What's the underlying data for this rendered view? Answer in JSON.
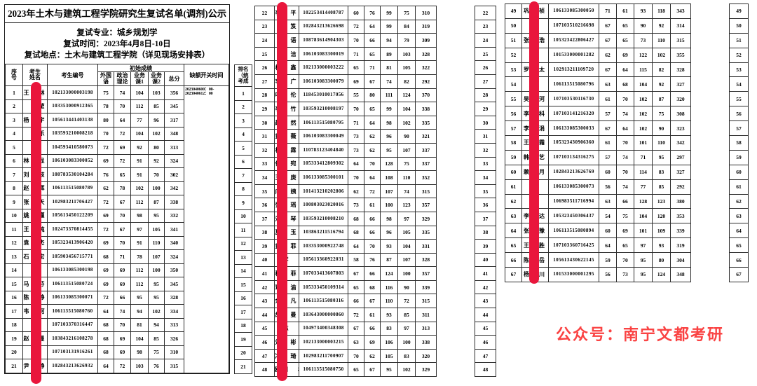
{
  "title": "2023年土木与建筑工程学院研究生复试名单(调剂)公示",
  "info": [
    "复试专业：城乡规划学",
    "复试时间：2023年4月8日-10日",
    "复试地点：土木与建筑工程学院（详见现场安排表）"
  ],
  "headers": {
    "seq": "序号",
    "name": "考生姓名",
    "id": "考生编号",
    "initial_scores": "初始成绩",
    "foreign": "外国语",
    "politics": "政治理论",
    "course1": "业务课1",
    "course2": "业务课2",
    "total": "总分",
    "vacancy_time": "缺额开关时间",
    "rank": "排名（统考成"
  },
  "vacancy_value_lines": [
    "2023040600：00-",
    "2023040612：00"
  ],
  "footer": "公众号：南宁文都考研",
  "colors": {
    "redact_bar": "#e9163c",
    "footer_red": "#fa4343",
    "border": "#2b2b2b"
  },
  "tables": [
    {
      "rows": [
        [
          1,
          "王　林",
          "102133000003198",
          75,
          74,
          104,
          103,
          356,
          1
        ],
        [
          2,
          "　　莹",
          "103353000912365",
          78,
          70,
          112,
          85,
          345,
          2
        ],
        [
          3,
          "杨　宇",
          "105613441403138",
          80,
          64,
          77,
          96,
          317,
          3
        ],
        [
          4,
          "　　乐",
          "103593210008218",
          70,
          72,
          104,
          102,
          348,
          4
        ],
        [
          5,
          "　　",
          "104593410580073",
          72,
          69,
          92,
          80,
          313,
          5
        ],
        [
          6,
          "林　显",
          "106103083300052",
          69,
          72,
          91,
          92,
          324,
          6
        ],
        [
          7,
          "刘　岐",
          "108783530104284",
          76,
          65,
          91,
          70,
          302,
          7
        ],
        [
          8,
          "赵　辉",
          "106113515080789",
          62,
          78,
          102,
          100,
          342,
          8
        ],
        [
          9,
          "张　天",
          "102983211706427",
          72,
          67,
          112,
          87,
          338,
          9
        ],
        [
          10,
          "姚　瑾",
          "105613450122209",
          69,
          70,
          98,
          95,
          332,
          10
        ],
        [
          11,
          "王　纯",
          "102473370814455",
          72,
          67,
          97,
          105,
          341,
          11
        ],
        [
          12,
          "袁　杰",
          "105323413906420",
          69,
          70,
          91,
          110,
          340,
          12
        ],
        [
          13,
          "石　宏",
          "105903456715771",
          68,
          71,
          78,
          107,
          324,
          13
        ],
        [
          14,
          "马　　",
          "106133085300198",
          69,
          69,
          112,
          100,
          350,
          14
        ],
        [
          15,
          "马　芬",
          "106113515080724",
          69,
          69,
          112,
          95,
          345,
          15
        ],
        [
          16,
          "陈　静",
          "106133085300071",
          72,
          66,
          95,
          95,
          328,
          16
        ],
        [
          17,
          "韦　河",
          "106113515080760",
          64,
          74,
          94,
          102,
          334,
          17
        ],
        [
          18,
          "庞　　",
          "107103370316447",
          68,
          70,
          81,
          94,
          313,
          18
        ],
        [
          19,
          "赵　曼",
          "103843216108278",
          68,
          69,
          104,
          85,
          326,
          19
        ],
        [
          20,
          "李　　",
          "107103131916261",
          68,
          69,
          98,
          75,
          310,
          20
        ],
        [
          21,
          "尹　静",
          "102843213626932",
          64,
          72,
          103,
          76,
          315,
          21
        ]
      ]
    },
    {
      "rows": [
        [
          22,
          "李　平",
          "102253414408787",
          60,
          76,
          99,
          75,
          310,
          22
        ],
        [
          23,
          "　　笈",
          "102843213626698",
          72,
          64,
          99,
          84,
          319,
          23
        ],
        [
          24,
          "　　语",
          "108783614904303",
          70,
          66,
          94,
          79,
          309,
          24
        ],
        [
          25,
          "　　洁",
          "106103083300019",
          71,
          65,
          89,
          103,
          328,
          25
        ],
        [
          26,
          "林　鑫",
          "102133000003222",
          65,
          71,
          81,
          105,
          322,
          26
        ],
        [
          27,
          "李　广",
          "106103083300079",
          69,
          67,
          74,
          82,
          292,
          27
        ],
        [
          28,
          "叶　伦",
          "118453010017056",
          55,
          80,
          111,
          124,
          370,
          28
        ],
        [
          29,
          "李　竹",
          "103593210008197",
          70,
          65,
          99,
          104,
          338,
          29
        ],
        [
          30,
          "赵　然",
          "106113515080795",
          71,
          64,
          98,
          102,
          335,
          30
        ],
        [
          31,
          "黄　薇",
          "106103083300049",
          73,
          62,
          96,
          90,
          321,
          31
        ],
        [
          32,
          "林　霖",
          "110783123404840",
          73,
          62,
          95,
          107,
          337,
          32
        ],
        [
          33,
          "任　宛",
          "105333412809302",
          64,
          70,
          128,
          75,
          337,
          33
        ],
        [
          34,
          "王　庚",
          "106133085300101",
          70,
          64,
          108,
          110,
          352,
          34
        ],
        [
          35,
          "向　姨",
          "101413210202806",
          62,
          72,
          107,
          74,
          315,
          35
        ],
        [
          36,
          "张　瑶",
          "100803023020016",
          73,
          61,
          100,
          123,
          357,
          36
        ],
        [
          37,
          "汪　琴",
          "103593210008210",
          68,
          66,
          98,
          97,
          329,
          37
        ],
        [
          38,
          "夏　玉",
          "103863211516794",
          68,
          66,
          96,
          105,
          335,
          38
        ],
        [
          39,
          "黄　菲",
          "103353000922748",
          64,
          70,
          93,
          104,
          331,
          39
        ],
        [
          40,
          "李　　",
          "105613360922031",
          58,
          76,
          87,
          107,
          328,
          40
        ],
        [
          41,
          "穆　菲",
          "107033413607803",
          67,
          66,
          124,
          100,
          357,
          41
        ],
        [
          42,
          "覃　渝",
          "105333450109314",
          65,
          68,
          116,
          90,
          339,
          42
        ],
        [
          43,
          "余　凡",
          "106113515080316",
          66,
          67,
          110,
          72,
          315,
          43
        ],
        [
          44,
          "胡　曼",
          "103643000000860",
          72,
          61,
          93,
          85,
          311,
          44
        ],
        [
          45,
          "陈　　",
          "104973400348308",
          67,
          66,
          83,
          97,
          313,
          45
        ],
        [
          46,
          "刘　彬",
          "102133000003215",
          63,
          69,
          106,
          100,
          338,
          46
        ],
        [
          47,
          "冯　琦",
          "102983211700907",
          70,
          62,
          105,
          83,
          320,
          47
        ],
        [
          48,
          "欧阳　林",
          "106113515080750",
          65,
          67,
          95,
          102,
          329,
          48
        ]
      ]
    },
    {
      "rows": [
        [
          49,
          "巩　祯",
          "106133085300050",
          71,
          61,
          93,
          118,
          343,
          49
        ],
        [
          50,
          "刘　　",
          "107103510216698",
          67,
          65,
          90,
          92,
          314,
          50
        ],
        [
          51,
          "张　浩",
          "105323422806427",
          67,
          65,
          73,
          110,
          315,
          51
        ],
        [
          52,
          "刘　　",
          "101533000001282",
          62,
          69,
          122,
          102,
          355,
          52
        ],
        [
          53,
          "罗　太",
          "102913211109720",
          67,
          64,
          115,
          82,
          328,
          53
        ],
        [
          54,
          "杨　　",
          "106113515080796",
          63,
          68,
          104,
          92,
          327,
          54
        ],
        [
          55,
          "吴　河",
          "107103530116730",
          61,
          70,
          102,
          87,
          320,
          55
        ],
        [
          56,
          "李　科",
          "107103141216320",
          57,
          74,
          102,
          75,
          308,
          56
        ],
        [
          57,
          "李　涓",
          "106133085300033",
          67,
          64,
          102,
          90,
          323,
          57
        ],
        [
          58,
          "王　霜",
          "105323430906360",
          61,
          70,
          101,
          110,
          342,
          58
        ],
        [
          59,
          "韩　艺",
          "107103134316275",
          57,
          74,
          71,
          95,
          297,
          59
        ],
        [
          60,
          "赖　月",
          "102843213626769",
          60,
          70,
          114,
          83,
          327,
          60
        ],
        [
          61,
          "李　　",
          "106133085300073",
          56,
          74,
          77,
          85,
          292,
          61
        ],
        [
          62,
          "李　　",
          "106983511716994",
          63,
          66,
          128,
          123,
          380,
          62
        ],
        [
          63,
          "李　达",
          "105323450306437",
          54,
          75,
          104,
          120,
          353,
          63
        ],
        [
          64,
          "张　豫",
          "106113515080894",
          60,
          69,
          101,
          109,
          339,
          64
        ],
        [
          65,
          "王　胜",
          "107103360716425",
          64,
          65,
          97,
          93,
          319,
          65
        ],
        [
          66,
          "陈　岳",
          "105613430622145",
          59,
          70,
          95,
          80,
          304,
          66
        ],
        [
          67,
          "杨　川",
          "101533000001295",
          56,
          73,
          95,
          124,
          348,
          67
        ]
      ]
    }
  ]
}
